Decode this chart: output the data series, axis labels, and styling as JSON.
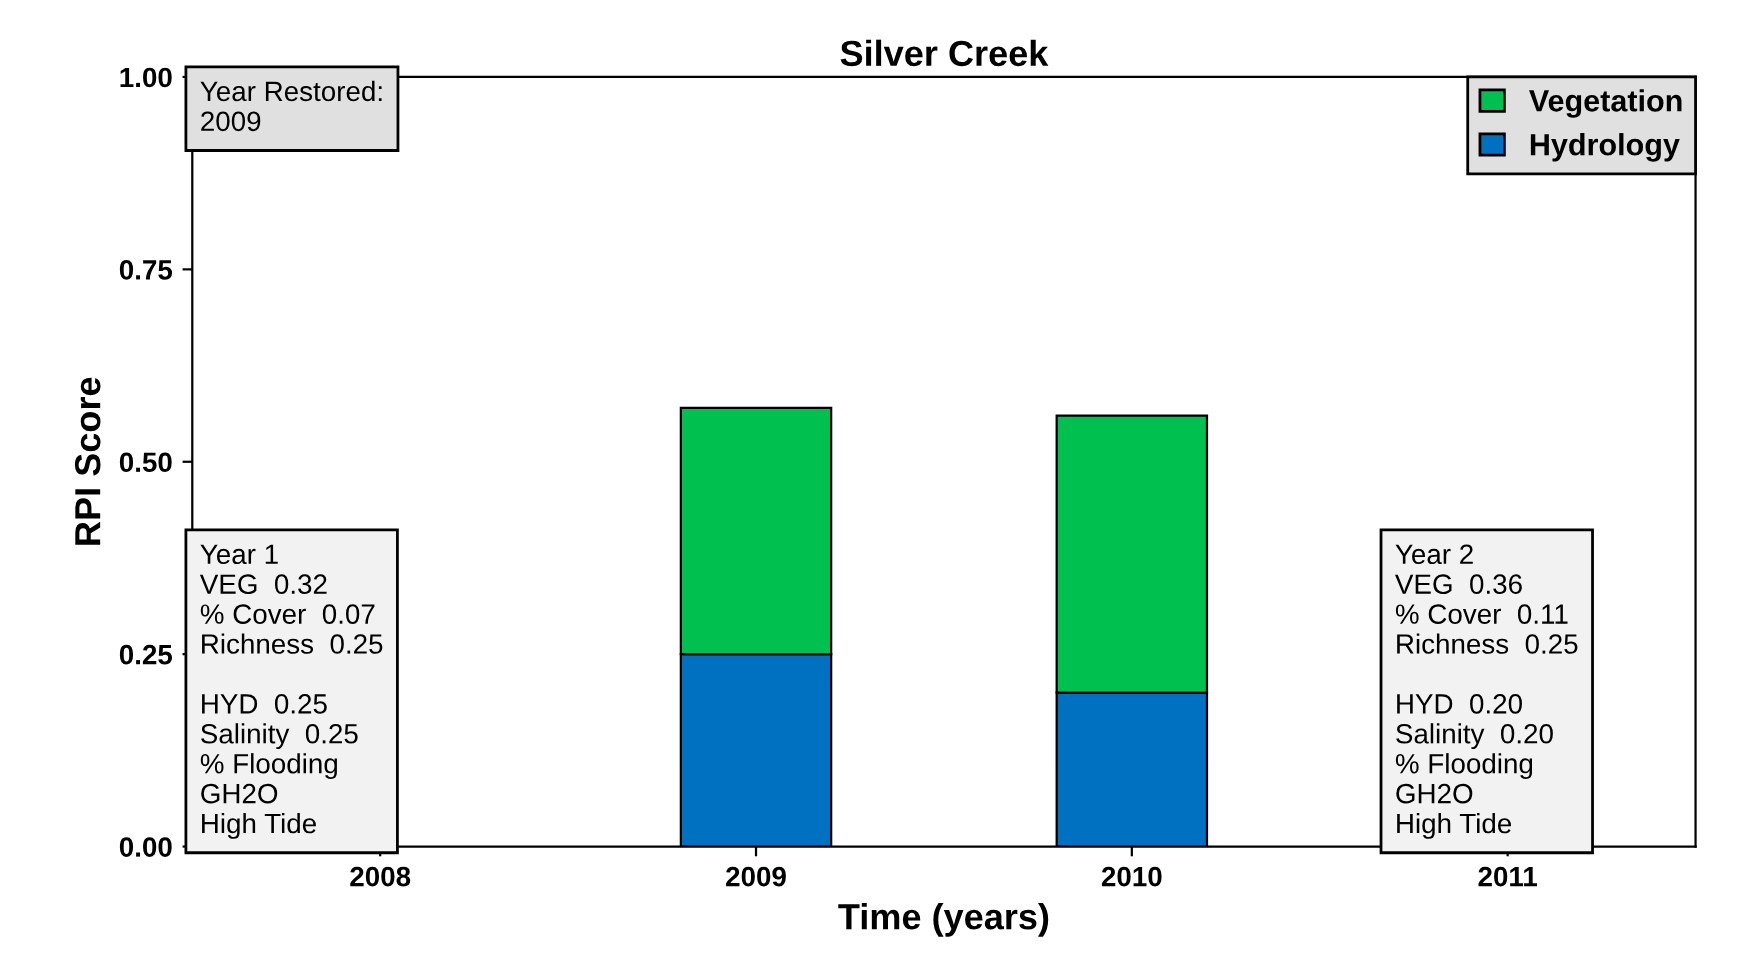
{
  "chart_data": {
    "type": "bar",
    "title": "Silver Creek",
    "xlabel": "Time (years)",
    "ylabel": "RPI Score",
    "categories": [
      "2008",
      "2009",
      "2010",
      "2011"
    ],
    "stacked": true,
    "series": [
      {
        "name": "Hydrology",
        "color": "#0070c0",
        "values": [
          null,
          0.25,
          0.2,
          null
        ]
      },
      {
        "name": "Vegetation",
        "color": "#00c050",
        "values": [
          null,
          0.32,
          0.36,
          null
        ]
      }
    ],
    "ylim": [
      0,
      1
    ],
    "yticks": [
      {
        "value": 0,
        "label": "0.00"
      },
      {
        "value": 0.25,
        "label": "0.25"
      },
      {
        "value": 0.5,
        "label": "0.50"
      },
      {
        "value": 0.75,
        "label": "0.75"
      },
      {
        "value": 1,
        "label": "1.00"
      }
    ],
    "grid": false,
    "legend": "top right",
    "annotations": [
      "Year Restored:\n2009",
      "Year 1\nVEG  0.32\n% Cover  0.07\nRichness  0.25\n\nHYD  0.25\nSalinity  0.25\n% Flooding\nGH2O\nHigh Tide",
      "Year 2\nVEG  0.36\n% Cover  0.11\nRichness  0.25\n\nHYD  0.20\nSalinity  0.20\n% Flooding\nGH2O\nHigh Tide"
    ]
  }
}
